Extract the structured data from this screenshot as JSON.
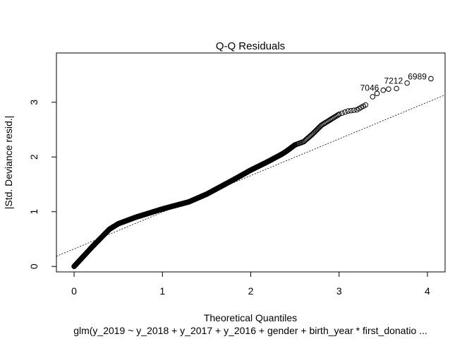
{
  "chart_data": {
    "type": "scatter",
    "title": "Q-Q Residuals",
    "xlabel": "Theoretical Quantiles",
    "ylabel": "|Std. Deviance resid.|",
    "subtitle": "glm(y_2019 ~ y_2018 + y_2017 + y_2016 + gender + birth_year * first_donatio ...",
    "xlim": [
      -0.2,
      4.2
    ],
    "ylim": [
      -0.1,
      3.9
    ],
    "xticks": [
      0,
      1,
      2,
      3,
      4
    ],
    "yticks": [
      0,
      1,
      2,
      3
    ],
    "xtick_labels": [
      "0",
      "1",
      "2",
      "3",
      "4"
    ],
    "ytick_labels": [
      "0",
      "1",
      "2",
      "3"
    ],
    "reference_line": {
      "intercept": 0.32,
      "slope": 0.67
    },
    "curve": {
      "x": [
        0,
        0.2,
        0.4,
        0.5,
        0.7,
        1.0,
        1.3,
        1.5,
        1.8,
        2.0,
        2.2,
        2.35,
        2.4,
        2.5,
        2.6,
        2.7,
        2.8,
        2.9,
        3.0,
        3.1,
        3.2,
        3.3
      ],
      "y": [
        0,
        0.35,
        0.68,
        0.78,
        0.9,
        1.05,
        1.18,
        1.32,
        1.58,
        1.76,
        1.92,
        2.05,
        2.1,
        2.22,
        2.28,
        2.42,
        2.58,
        2.68,
        2.78,
        2.84,
        2.86,
        2.95
      ]
    },
    "outliers": [
      {
        "x": 3.38,
        "y": 3.1,
        "label": ""
      },
      {
        "x": 3.43,
        "y": 3.16,
        "label": ""
      },
      {
        "x": 3.5,
        "y": 3.22,
        "label": "7046"
      },
      {
        "x": 3.56,
        "y": 3.24,
        "label": ""
      },
      {
        "x": 3.65,
        "y": 3.25,
        "label": ""
      },
      {
        "x": 3.77,
        "y": 3.35,
        "label": "7212"
      },
      {
        "x": 4.04,
        "y": 3.43,
        "label": "6989"
      }
    ]
  }
}
